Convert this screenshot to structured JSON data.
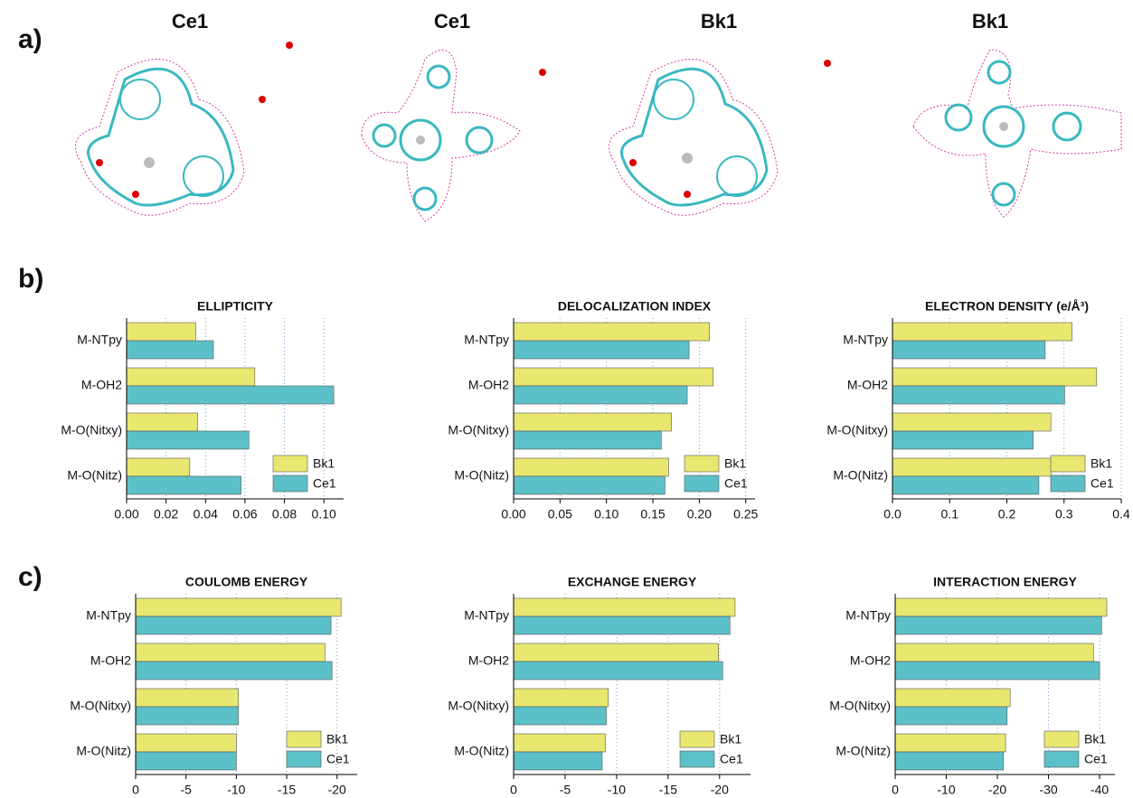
{
  "panels": [
    "a)",
    "b)",
    "c)"
  ],
  "structures": [
    "Ce1",
    "Ce1",
    "Bk1",
    "Bk1"
  ],
  "chart_data": [
    {
      "type": "bar",
      "orientation": "horizontal",
      "title": "ELLIPTICITY",
      "categories": [
        "M-NTpy",
        "M-OH2",
        "M-O(Nitxy)",
        "M-O(Nitz)"
      ],
      "series": [
        {
          "name": "Bk1",
          "color": "#e8e870",
          "values": [
            0.035,
            0.065,
            0.036,
            0.032
          ]
        },
        {
          "name": "Ce1",
          "color": "#5cc0c8",
          "values": [
            0.044,
            0.105,
            0.062,
            0.058
          ]
        }
      ],
      "xlim": [
        0,
        0.11
      ],
      "xticks": [
        {
          "value": 0,
          "label": "0.00"
        },
        0.02,
        0.04,
        0.06,
        0.08,
        {
          "value": 0.1,
          "label": "0.10"
        }
      ],
      "grid": true,
      "legend": "lower right"
    },
    {
      "type": "bar",
      "orientation": "horizontal",
      "title": "DELOCALIZATION INDEX",
      "categories": [
        "M-NTpy",
        "M-OH2",
        "M-O(Nitxy)",
        "M-O(Nitz)"
      ],
      "series": [
        {
          "name": "Bk1",
          "color": "#e8e870",
          "values": [
            0.211,
            0.215,
            0.17,
            0.167
          ]
        },
        {
          "name": "Ce1",
          "color": "#5cc0c8",
          "values": [
            0.189,
            0.187,
            0.159,
            0.163
          ]
        }
      ],
      "xlim": [
        0,
        0.26
      ],
      "xticks": [
        {
          "value": 0,
          "label": "0.00"
        },
        0.05,
        {
          "value": 0.1,
          "label": "0.10"
        },
        0.15,
        {
          "value": 0.2,
          "label": "0.20"
        },
        0.25
      ],
      "grid": true,
      "legend": "lower right"
    },
    {
      "type": "bar",
      "orientation": "horizontal",
      "title": "ELECTRON DENSITY (e/Å³)",
      "categories": [
        "M-NTpy",
        "M-OH2",
        "M-O(Nitxy)",
        "M-O(Nitz)"
      ],
      "series": [
        {
          "name": "Bk1",
          "color": "#e8e870",
          "values": [
            0.314,
            0.357,
            0.277,
            0.277
          ]
        },
        {
          "name": "Ce1",
          "color": "#5cc0c8",
          "values": [
            0.267,
            0.301,
            0.246,
            0.256
          ]
        }
      ],
      "xlim": [
        0,
        0.4
      ],
      "xticks": [
        {
          "value": 0,
          "label": "0.0"
        },
        0.1,
        0.2,
        0.3,
        0.4
      ],
      "grid": true,
      "legend": "lower right"
    },
    {
      "type": "bar",
      "orientation": "horizontal",
      "title": "COULOMB ENERGY",
      "categories": [
        "M-NTpy",
        "M-OH2",
        "M-O(Nitxy)",
        "M-O(Nitz)"
      ],
      "series": [
        {
          "name": "Bk1",
          "color": "#e8e870",
          "values": [
            -20.4,
            -18.8,
            -10.2,
            -10.0
          ]
        },
        {
          "name": "Ce1",
          "color": "#5cc0c8",
          "values": [
            -19.4,
            -19.5,
            -10.2,
            -10.0
          ]
        }
      ],
      "xlim": [
        0,
        -22
      ],
      "xticks": [
        0,
        -5,
        -10,
        -15,
        -20
      ],
      "grid": true,
      "legend": "lower right"
    },
    {
      "type": "bar",
      "orientation": "horizontal",
      "title": "EXCHANGE ENERGY",
      "categories": [
        "M-NTpy",
        "M-OH2",
        "M-O(Nitxy)",
        "M-O(Nitz)"
      ],
      "series": [
        {
          "name": "Bk1",
          "color": "#e8e870",
          "values": [
            -21.5,
            -19.9,
            -9.2,
            -8.9
          ]
        },
        {
          "name": "Ce1",
          "color": "#5cc0c8",
          "values": [
            -21.0,
            -20.3,
            -9.0,
            -8.6
          ]
        }
      ],
      "xlim": [
        0,
        -23
      ],
      "xticks": [
        0,
        -5,
        -10,
        -15,
        -20
      ],
      "grid": true,
      "legend": "lower right"
    },
    {
      "type": "bar",
      "orientation": "horizontal",
      "title": "INTERACTION ENERGY",
      "categories": [
        "M-NTpy",
        "M-OH2",
        "M-O(Nitxy)",
        "M-O(Nitz)"
      ],
      "series": [
        {
          "name": "Bk1",
          "color": "#e8e870",
          "values": [
            -41.4,
            -38.8,
            -22.5,
            -21.6
          ]
        },
        {
          "name": "Ce1",
          "color": "#5cc0c8",
          "values": [
            -40.4,
            -40.0,
            -21.9,
            -21.2
          ]
        }
      ],
      "xlim": [
        0,
        -43
      ],
      "xticks": [
        0,
        -10,
        -20,
        -30,
        -40
      ],
      "grid": true,
      "legend": "lower right"
    }
  ]
}
